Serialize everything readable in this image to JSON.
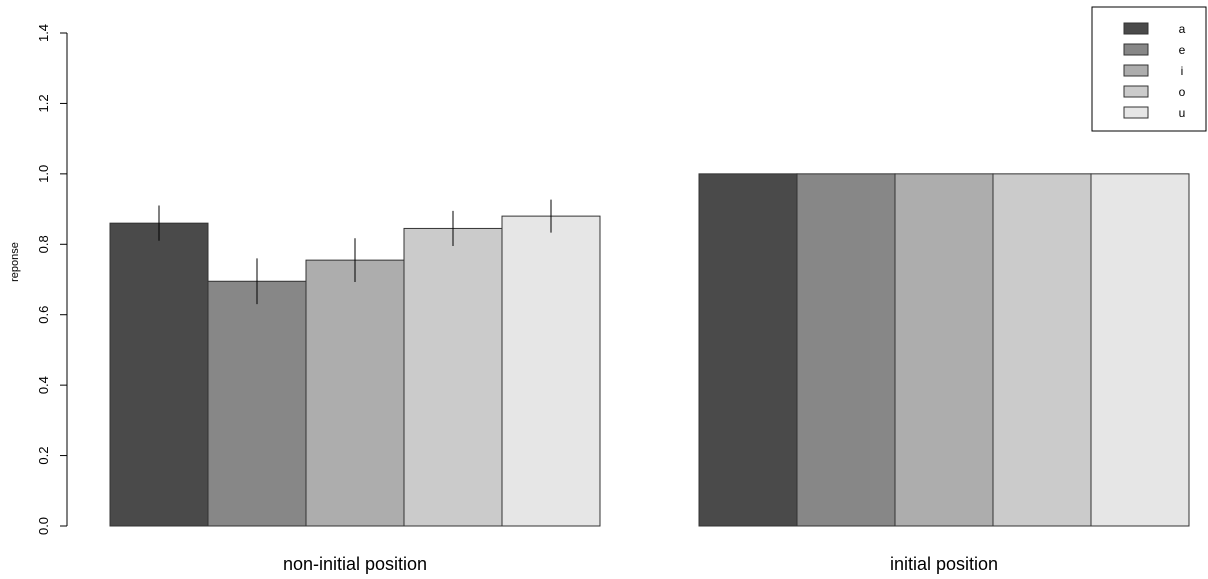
{
  "chart_data": {
    "type": "bar",
    "title": "",
    "xlabel": "",
    "ylabel": "reponse",
    "ylim": [
      0,
      1.4
    ],
    "yticks": [
      "0.0",
      "0.2",
      "0.4",
      "0.6",
      "0.8",
      "1.0",
      "1.2",
      "1.4"
    ],
    "categories": [
      "non-initial position",
      "initial position"
    ],
    "series": [
      {
        "name": "a",
        "color": "#4a4a4a",
        "values": [
          0.86,
          1.0
        ],
        "error": [
          0.05,
          0
        ]
      },
      {
        "name": "e",
        "color": "#878787",
        "values": [
          0.695,
          1.0
        ],
        "error": [
          0.065,
          0
        ]
      },
      {
        "name": "i",
        "color": "#adadad",
        "values": [
          0.755,
          1.0
        ],
        "error": [
          0.062,
          0
        ]
      },
      {
        "name": "o",
        "color": "#cbcbcb",
        "values": [
          0.845,
          1.0
        ],
        "error": [
          0.05,
          0
        ]
      },
      {
        "name": "u",
        "color": "#e6e6e6",
        "values": [
          0.88,
          1.0
        ],
        "error": [
          0.047,
          0
        ]
      }
    ],
    "legend": "top-right",
    "grid": false
  }
}
